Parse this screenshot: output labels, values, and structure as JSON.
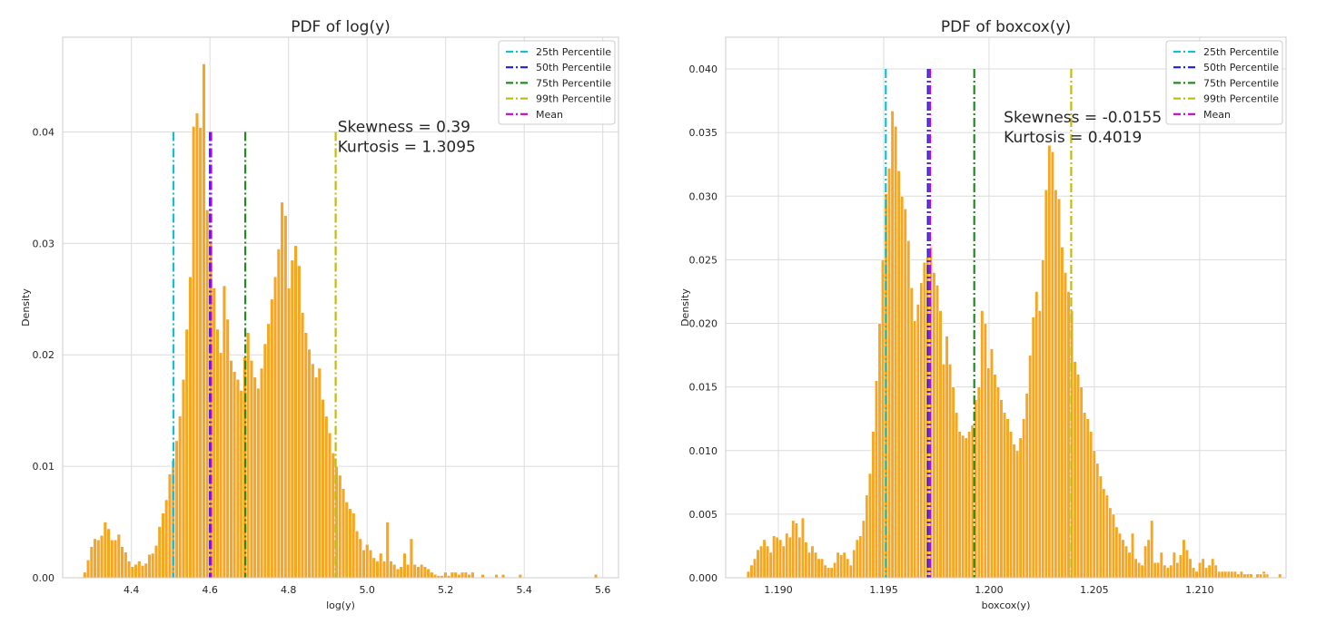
{
  "chart_data": [
    {
      "type": "bar",
      "title": "PDF of log(y)",
      "xlabel": "log(y)",
      "ylabel": "Density",
      "xlim": [
        4.225,
        5.64
      ],
      "ylim": [
        0,
        0.0485
      ],
      "xticks": [
        "4.4",
        "4.6",
        "4.8",
        "5.0",
        "5.2",
        "5.4",
        "5.6"
      ],
      "yticks": [
        "0.00",
        "0.01",
        "0.02",
        "0.03",
        "0.04"
      ],
      "grid": true,
      "legend_position": "top-right",
      "bar_color": "#f5a623",
      "bar_edge_color": "#ffffff",
      "bins": {
        "x_start": 4.277,
        "bin_width": 0.00866,
        "values": [
          0.0005,
          0.0016,
          0.0028,
          0.0035,
          0.0034,
          0.0038,
          0.005,
          0.0044,
          0.0034,
          0.0034,
          0.0039,
          0.0028,
          0.0023,
          0.0015,
          0.001,
          0.0012,
          0.0015,
          0.0011,
          0.0013,
          0.0021,
          0.0022,
          0.0029,
          0.0046,
          0.0058,
          0.007,
          0.0093,
          0.0105,
          0.0123,
          0.0145,
          0.0178,
          0.0223,
          0.027,
          0.0405,
          0.0417,
          0.0404,
          0.0461,
          0.033,
          0.0302,
          0.026,
          0.0223,
          0.0202,
          0.0262,
          0.0232,
          0.0195,
          0.0185,
          0.0178,
          0.0168,
          0.0198,
          0.022,
          0.0195,
          0.018,
          0.017,
          0.0188,
          0.021,
          0.0228,
          0.025,
          0.027,
          0.0295,
          0.0337,
          0.0325,
          0.026,
          0.0285,
          0.0298,
          0.028,
          0.0238,
          0.022,
          0.0205,
          0.0192,
          0.018,
          0.0188,
          0.016,
          0.0145,
          0.013,
          0.0112,
          0.01,
          0.0092,
          0.008,
          0.0068,
          0.0062,
          0.0058,
          0.0042,
          0.0035,
          0.0025,
          0.003,
          0.0025,
          0.0018,
          0.0015,
          0.0022,
          0.0015,
          0.005,
          0.0015,
          0.0012,
          0.0008,
          0.001,
          0.0022,
          0.0012,
          0.0035,
          0.0012,
          0.001,
          0.0012,
          0.001,
          0.0008,
          0.0005,
          0.0003,
          0.0002,
          0.0002,
          0.0005,
          0.0002,
          0.0005,
          0.0005,
          0.0003,
          0.0005,
          0.0005,
          0.0003,
          0.0005,
          0,
          0,
          0.0003,
          0,
          0,
          0,
          0.0003,
          0,
          0.0003,
          0,
          0,
          0,
          0,
          0.0003
        ],
        "outliers": [
          {
            "x": 5.578,
            "value": 0.0003
          }
        ]
      },
      "vlines": [
        {
          "name": "25th Percentile",
          "x": 4.507,
          "color": "#17becf"
        },
        {
          "name": "50th Percentile",
          "x": 4.6,
          "color": "#1f1fe0"
        },
        {
          "name": "75th Percentile",
          "x": 4.69,
          "color": "#228b22"
        },
        {
          "name": "99th Percentile",
          "x": 4.92,
          "color": "#bfbf10"
        },
        {
          "name": "Mean",
          "x": 4.603,
          "color": "#cc00cc"
        }
      ],
      "vline_top": 0.04,
      "annotations": [
        "Skewness = 0.39",
        "Kurtosis = 1.3095"
      ],
      "annotation_anchor": {
        "x": 4.925,
        "y": 0.04
      }
    },
    {
      "type": "bar",
      "title": "PDF of boxcox(y)",
      "xlabel": "boxcox(y)",
      "ylabel": "Density",
      "xlim": [
        1.1875,
        1.2141
      ],
      "ylim": [
        0,
        0.0425
      ],
      "xticks": [
        "1.190",
        "1.195",
        "1.200",
        "1.205",
        "1.210"
      ],
      "yticks": [
        "0.000",
        "0.005",
        "0.010",
        "0.015",
        "0.020",
        "0.025",
        "0.030",
        "0.035",
        "0.040"
      ],
      "grid": true,
      "legend_position": "top-right",
      "bar_color": "#f5a623",
      "bar_edge_color": "#ffffff",
      "bins": {
        "x_start": 1.1885,
        "bin_width": 0.000152,
        "values": [
          0.0005,
          0.001,
          0.0015,
          0.0022,
          0.0025,
          0.003,
          0.0025,
          0.002,
          0.0033,
          0.0032,
          0.003,
          0.0025,
          0.0035,
          0.0032,
          0.0045,
          0.0043,
          0.0032,
          0.0047,
          0.0028,
          0.002,
          0.0025,
          0.002,
          0.0015,
          0.0015,
          0.001,
          0.0008,
          0.0008,
          0.0012,
          0.002,
          0.0018,
          0.002,
          0.0015,
          0.001,
          0.0022,
          0.003,
          0.0033,
          0.0045,
          0.0065,
          0.0082,
          0.0115,
          0.0155,
          0.02,
          0.025,
          0.0302,
          0.0322,
          0.0367,
          0.0355,
          0.032,
          0.03,
          0.029,
          0.0265,
          0.0228,
          0.0202,
          0.0215,
          0.0232,
          0.0248,
          0.0252,
          0.026,
          0.024,
          0.023,
          0.021,
          0.0168,
          0.019,
          0.0168,
          0.015,
          0.013,
          0.0115,
          0.0112,
          0.011,
          0.0115,
          0.012,
          0.014,
          0.015,
          0.021,
          0.02,
          0.0165,
          0.018,
          0.016,
          0.015,
          0.014,
          0.013,
          0.0125,
          0.0115,
          0.0105,
          0.01,
          0.011,
          0.0125,
          0.0145,
          0.0175,
          0.0205,
          0.0225,
          0.021,
          0.025,
          0.0305,
          0.034,
          0.0335,
          0.0305,
          0.0298,
          0.026,
          0.024,
          0.0225,
          0.021,
          0.017,
          0.016,
          0.015,
          0.013,
          0.0125,
          0.0115,
          0.01,
          0.009,
          0.008,
          0.007,
          0.0065,
          0.0055,
          0.005,
          0.004,
          0.0035,
          0.003,
          0.0025,
          0.002,
          0.0035,
          0.0015,
          0.0012,
          0.001,
          0.0025,
          0.003,
          0.0045,
          0.0012,
          0.0012,
          0.002,
          0.001,
          0.0008,
          0.001,
          0.002,
          0.0012,
          0.0018,
          0.003,
          0.0022,
          0.0015,
          0.0008,
          0.0005,
          0.0012,
          0.0015,
          0.0008,
          0.001,
          0.0015,
          0.001,
          0.0005,
          0.0005,
          0.0005,
          0.0005,
          0.0005,
          0.0005,
          0.0003,
          0.0005,
          0.0003,
          0.0003,
          0.0003,
          0,
          0.0003,
          0.0003,
          0.0005,
          0.0003,
          0,
          0,
          0,
          0.0003
        ],
        "outliers": [
          {
            "x": 1.213,
            "value": 0.0003
          }
        ]
      },
      "vlines": [
        {
          "name": "25th Percentile",
          "x": 1.1951,
          "color": "#17becf"
        },
        {
          "name": "50th Percentile",
          "x": 1.1971,
          "color": "#1f1fe0"
        },
        {
          "name": "75th Percentile",
          "x": 1.1993,
          "color": "#228b22"
        },
        {
          "name": "99th Percentile",
          "x": 1.2039,
          "color": "#bfbf10"
        },
        {
          "name": "Mean",
          "x": 1.1972,
          "color": "#cc00cc"
        }
      ],
      "vline_top": 0.04,
      "annotations": [
        "Skewness = -0.0155",
        "Kurtosis = 0.4019"
      ],
      "annotation_anchor": {
        "x": 1.2007,
        "y": 0.0358
      }
    }
  ]
}
